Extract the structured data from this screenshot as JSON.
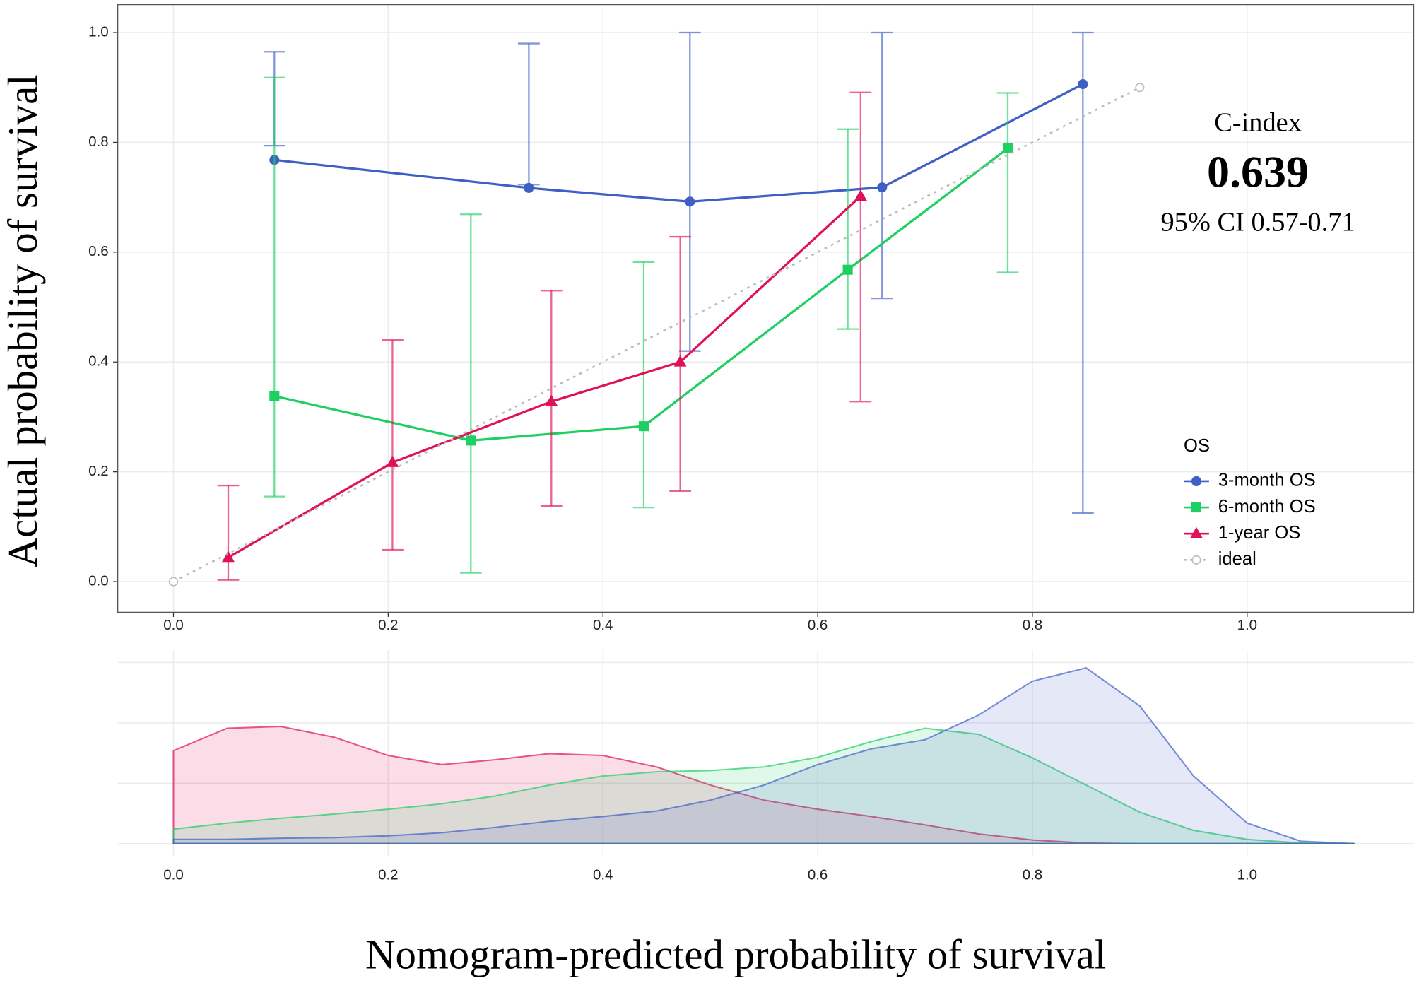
{
  "chart_data": [
    {
      "type": "calibration",
      "ylabel": "Actual probability of survival",
      "xlim": [
        -0.052,
        1.155
      ],
      "ylim": [
        -0.056,
        1.051
      ],
      "xticks": [
        {
          "value": 0,
          "label": "0.0"
        },
        0.2,
        0.4,
        0.6,
        0.8,
        {
          "value": 1,
          "label": "1.0"
        }
      ],
      "yticks": [
        {
          "value": 0,
          "label": "0.0"
        },
        0.2,
        0.4,
        0.6,
        0.8,
        {
          "value": 1,
          "label": "1.0"
        }
      ],
      "grid": true,
      "legend_title": "OS",
      "legend_position": "right",
      "annotation": {
        "label": "C-index",
        "value": "0.639",
        "ci": "95% CI 0.57-0.71"
      },
      "series": [
        {
          "name": "3-month OS",
          "color": "#3f5fc6",
          "marker": "circle",
          "x": [
            0.094,
            0.331,
            0.481,
            0.66,
            0.847
          ],
          "values": [
            0.768,
            0.717,
            0.692,
            0.718,
            0.906
          ],
          "lower": [
            0.794,
            0.723,
            0.42,
            0.516,
            0.125
          ],
          "upper": [
            0.965,
            0.98,
            1.0,
            1.0,
            1.0
          ]
        },
        {
          "name": "6-month OS",
          "color": "#1ecf62",
          "marker": "square",
          "x": [
            0.094,
            0.277,
            0.438,
            0.628,
            0.777
          ],
          "values": [
            0.338,
            0.257,
            0.283,
            0.568,
            0.789
          ],
          "lower": [
            0.155,
            0.016,
            0.135,
            0.46,
            0.563
          ],
          "upper": [
            0.918,
            0.669,
            0.582,
            0.824,
            0.89
          ]
        },
        {
          "name": "1-year OS",
          "color": "#e0105a",
          "marker": "triangle",
          "x": [
            0.051,
            0.204,
            0.352,
            0.472,
            0.64
          ],
          "values": [
            0.044,
            0.217,
            0.328,
            0.4,
            0.702
          ],
          "lower": [
            0.003,
            0.058,
            0.138,
            0.165,
            0.328
          ],
          "upper": [
            0.175,
            0.44,
            0.53,
            0.628,
            0.891
          ]
        },
        {
          "name": "ideal",
          "color": "#bbbbbb",
          "marker": "open-circle",
          "dashed": true,
          "x": [
            0,
            0.9
          ],
          "values": [
            0,
            0.9
          ]
        }
      ]
    },
    {
      "type": "density",
      "xlabel": "Nomogram-predicted probability of survival",
      "xlim": [
        -0.052,
        1.155
      ],
      "ylim": [
        -0.2,
        3.2
      ],
      "xticks": [
        {
          "value": 0,
          "label": "0.0"
        },
        0.2,
        0.4,
        0.6,
        0.8,
        {
          "value": 1,
          "label": "1.0"
        }
      ],
      "yticks": [
        0,
        1,
        2,
        3
      ],
      "grid": true,
      "x": [
        0,
        0.05,
        0.1,
        0.15,
        0.2,
        0.25,
        0.3,
        0.35,
        0.4,
        0.45,
        0.5,
        0.55,
        0.6,
        0.65,
        0.7,
        0.75,
        0.8,
        0.85,
        0.9,
        0.95,
        1.0,
        1.05,
        1.1
      ],
      "series": [
        {
          "color": "#e0105a",
          "values": [
            1.54,
            1.91,
            1.94,
            1.76,
            1.46,
            1.31,
            1.39,
            1.49,
            1.46,
            1.27,
            0.97,
            0.72,
            0.57,
            0.45,
            0.31,
            0.16,
            0.06,
            0.01,
            0,
            0,
            0,
            0,
            0
          ]
        },
        {
          "color": "#1ecf62",
          "values": [
            0.24,
            0.34,
            0.42,
            0.49,
            0.57,
            0.66,
            0.79,
            0.97,
            1.12,
            1.19,
            1.21,
            1.27,
            1.43,
            1.69,
            1.91,
            1.81,
            1.42,
            0.97,
            0.52,
            0.22,
            0.07,
            0.01,
            0
          ]
        },
        {
          "color": "#3f5fc6",
          "values": [
            0.07,
            0.07,
            0.09,
            0.1,
            0.13,
            0.18,
            0.27,
            0.37,
            0.45,
            0.54,
            0.72,
            0.97,
            1.31,
            1.57,
            1.72,
            2.13,
            2.69,
            2.91,
            2.28,
            1.12,
            0.34,
            0.04,
            0
          ]
        }
      ]
    }
  ]
}
